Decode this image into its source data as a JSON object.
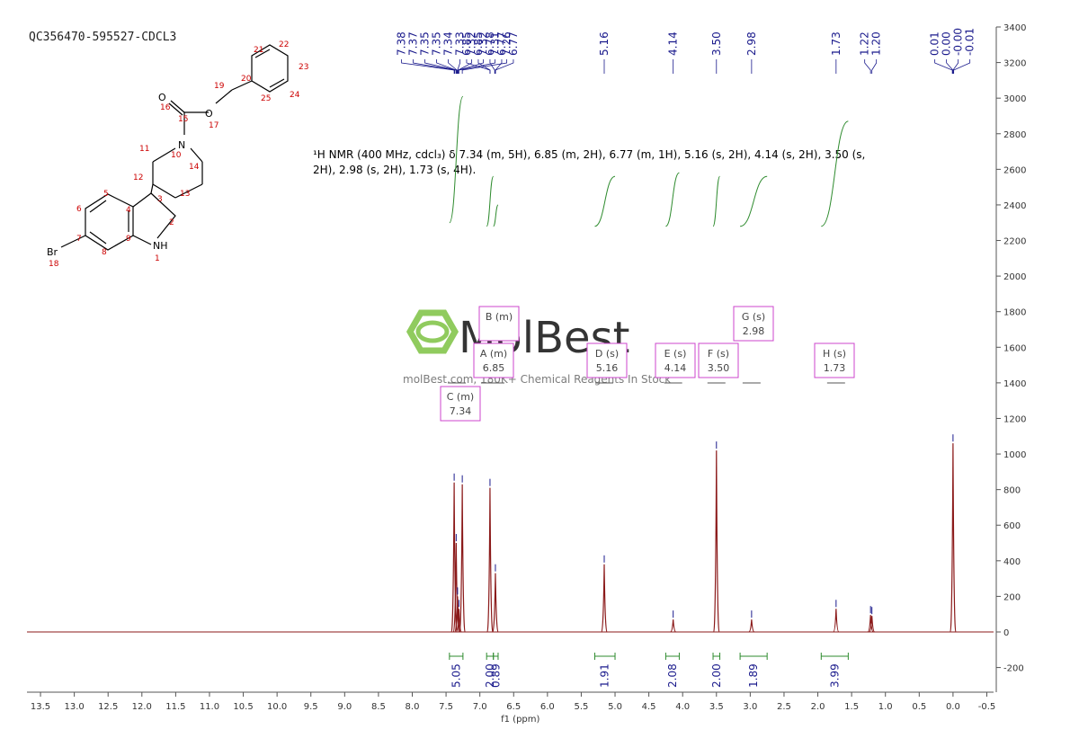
{
  "header": {
    "sample_id": "QC356470-595527-CDCL3",
    "description_line1": "¹H NMR (400 MHz, cdcl₃) δ 7.34 (m, 5H), 6.85 (m, 2H), 6.77 (m, 1H), 5.16 (s, 2H), 4.14 (s, 2H), 3.50 (s,",
    "description_line2": "2H), 2.98 (s, 2H), 1.73 (s, 4H)."
  },
  "watermark": {
    "brand": "MolBest",
    "tagline": "molBest.com, 180K+ Chemical Reagents In Stock"
  },
  "structure": {
    "atoms": [
      "O",
      "O",
      "N",
      "NH",
      "Br"
    ],
    "atom_numbers": [
      "1",
      "2",
      "3",
      "4",
      "5",
      "6",
      "7",
      "8",
      "9",
      "10",
      "11",
      "12",
      "13",
      "14",
      "15",
      "16",
      "17",
      "18",
      "19",
      "20",
      "21",
      "22",
      "23",
      "24",
      "25"
    ]
  },
  "chart_data": {
    "type": "line",
    "xlabel": "f1 (ppm)",
    "ylabel": "",
    "x_reversed": true,
    "xlim": [
      13.7,
      -0.6
    ],
    "ylim": [
      -350,
      3400
    ],
    "x_ticks": [
      "13.5",
      "13.0",
      "12.5",
      "12.0",
      "11.5",
      "11.0",
      "10.5",
      "10.0",
      "9.5",
      "9.0",
      "8.5",
      "8.0",
      "7.5",
      "7.0",
      "6.5",
      "6.0",
      "5.5",
      "5.0",
      "4.5",
      "4.0",
      "3.5",
      "3.0",
      "2.5",
      "2.0",
      "1.5",
      "1.0",
      "0.5",
      "0.0",
      "-0.5"
    ],
    "y_ticks": [
      "3400",
      "3200",
      "3000",
      "2800",
      "2600",
      "2400",
      "2200",
      "2000",
      "1800",
      "1600",
      "1400",
      "1200",
      "1000",
      "800",
      "600",
      "400",
      "200",
      "0",
      "-200"
    ],
    "peaks": [
      {
        "ppm": 7.38,
        "height": 840
      },
      {
        "ppm": 7.35,
        "height": 500
      },
      {
        "ppm": 7.33,
        "height": 200
      },
      {
        "ppm": 7.31,
        "height": 130
      },
      {
        "ppm": 7.26,
        "height": 830
      },
      {
        "ppm": 6.85,
        "height": 810
      },
      {
        "ppm": 6.77,
        "height": 330
      },
      {
        "ppm": 5.16,
        "height": 380
      },
      {
        "ppm": 4.14,
        "height": 70
      },
      {
        "ppm": 3.5,
        "height": 1020
      },
      {
        "ppm": 2.98,
        "height": 70
      },
      {
        "ppm": 1.73,
        "height": 130
      },
      {
        "ppm": 1.22,
        "height": 95
      },
      {
        "ppm": 1.2,
        "height": 90
      },
      {
        "ppm": 0.0,
        "height": 1060
      }
    ],
    "peak_labels": [
      {
        "ppm": 7.38,
        "label": "7.38"
      },
      {
        "ppm": 7.37,
        "label": "7.37"
      },
      {
        "ppm": 7.35,
        "label": "7.35"
      },
      {
        "ppm": 7.35,
        "label": "7.35"
      },
      {
        "ppm": 7.34,
        "label": "7.34"
      },
      {
        "ppm": 7.33,
        "label": "7.33"
      },
      {
        "ppm": 7.32,
        "label": "7.32"
      },
      {
        "ppm": 7.32,
        "label": "7.32"
      },
      {
        "ppm": 7.31,
        "label": "7.31"
      },
      {
        "ppm": 7.26,
        "label": "7.26"
      },
      {
        "ppm": 6.85,
        "label": "6.85"
      },
      {
        "ppm": 6.85,
        "label": "6.85"
      },
      {
        "ppm": 6.78,
        "label": "6.78"
      },
      {
        "ppm": 6.77,
        "label": "6.77"
      },
      {
        "ppm": 6.77,
        "label": "6.77"
      },
      {
        "ppm": 5.16,
        "label": "5.16"
      },
      {
        "ppm": 4.14,
        "label": "4.14"
      },
      {
        "ppm": 3.5,
        "label": "3.50"
      },
      {
        "ppm": 2.98,
        "label": "2.98"
      },
      {
        "ppm": 1.73,
        "label": "1.73"
      },
      {
        "ppm": 1.22,
        "label": "1.22"
      },
      {
        "ppm": 1.2,
        "label": "1.20"
      },
      {
        "ppm": 0.01,
        "label": "0.01"
      },
      {
        "ppm": 0.0,
        "label": "0.00"
      },
      {
        "ppm": -0.0,
        "label": "-0.00"
      },
      {
        "ppm": -0.01,
        "label": "-0.01"
      }
    ],
    "integrals": [
      {
        "from": 7.45,
        "to": 7.25,
        "value": "5.05"
      },
      {
        "from": 6.9,
        "to": 6.8,
        "value": "2.00"
      },
      {
        "from": 6.8,
        "to": 6.73,
        "value": "0.89"
      },
      {
        "from": 5.3,
        "to": 5.0,
        "value": "1.91"
      },
      {
        "from": 4.25,
        "to": 4.05,
        "value": "2.08"
      },
      {
        "from": 3.55,
        "to": 3.45,
        "value": "2.00"
      },
      {
        "from": 3.15,
        "to": 2.75,
        "value": "1.89"
      },
      {
        "from": 1.95,
        "to": 1.55,
        "value": "3.99"
      }
    ],
    "integral_curves": [
      {
        "from": 7.45,
        "to": 7.25,
        "base": 2300,
        "top": 3010
      },
      {
        "from": 6.9,
        "to": 6.8,
        "base": 2280,
        "top": 2560
      },
      {
        "from": 6.8,
        "to": 6.73,
        "base": 2280,
        "top": 2400
      },
      {
        "from": 5.3,
        "to": 5.0,
        "base": 2280,
        "top": 2560
      },
      {
        "from": 4.25,
        "to": 4.05,
        "base": 2280,
        "top": 2580
      },
      {
        "from": 3.55,
        "to": 3.45,
        "base": 2280,
        "top": 2560
      },
      {
        "from": 3.15,
        "to": 2.75,
        "base": 2280,
        "top": 2560
      },
      {
        "from": 1.95,
        "to": 1.55,
        "base": 2280,
        "top": 2870
      }
    ],
    "multiplets": [
      {
        "name": "B",
        "type": "(m)",
        "value": "",
        "ppm": 6.77
      },
      {
        "name": "A",
        "type": "(m)",
        "value": "6.85",
        "ppm": 6.85
      },
      {
        "name": "C",
        "type": "(m)",
        "value": "7.34",
        "ppm": 7.34
      },
      {
        "name": "D",
        "type": "(s)",
        "value": "5.16",
        "ppm": 5.16
      },
      {
        "name": "E",
        "type": "(s)",
        "value": "4.14",
        "ppm": 4.14
      },
      {
        "name": "F",
        "type": "(s)",
        "value": "3.50",
        "ppm": 3.5
      },
      {
        "name": "G",
        "type": "(s)",
        "value": "2.98",
        "ppm": 2.98
      },
      {
        "name": "H",
        "type": "(s)",
        "value": "1.73",
        "ppm": 1.73
      }
    ],
    "colors": {
      "spectrum": "#8b1a1a",
      "peak_label": "#1a1a8c",
      "integral": "#2e8b2e",
      "multiplet_box": "#cc44cc",
      "axis": "#555555"
    }
  }
}
